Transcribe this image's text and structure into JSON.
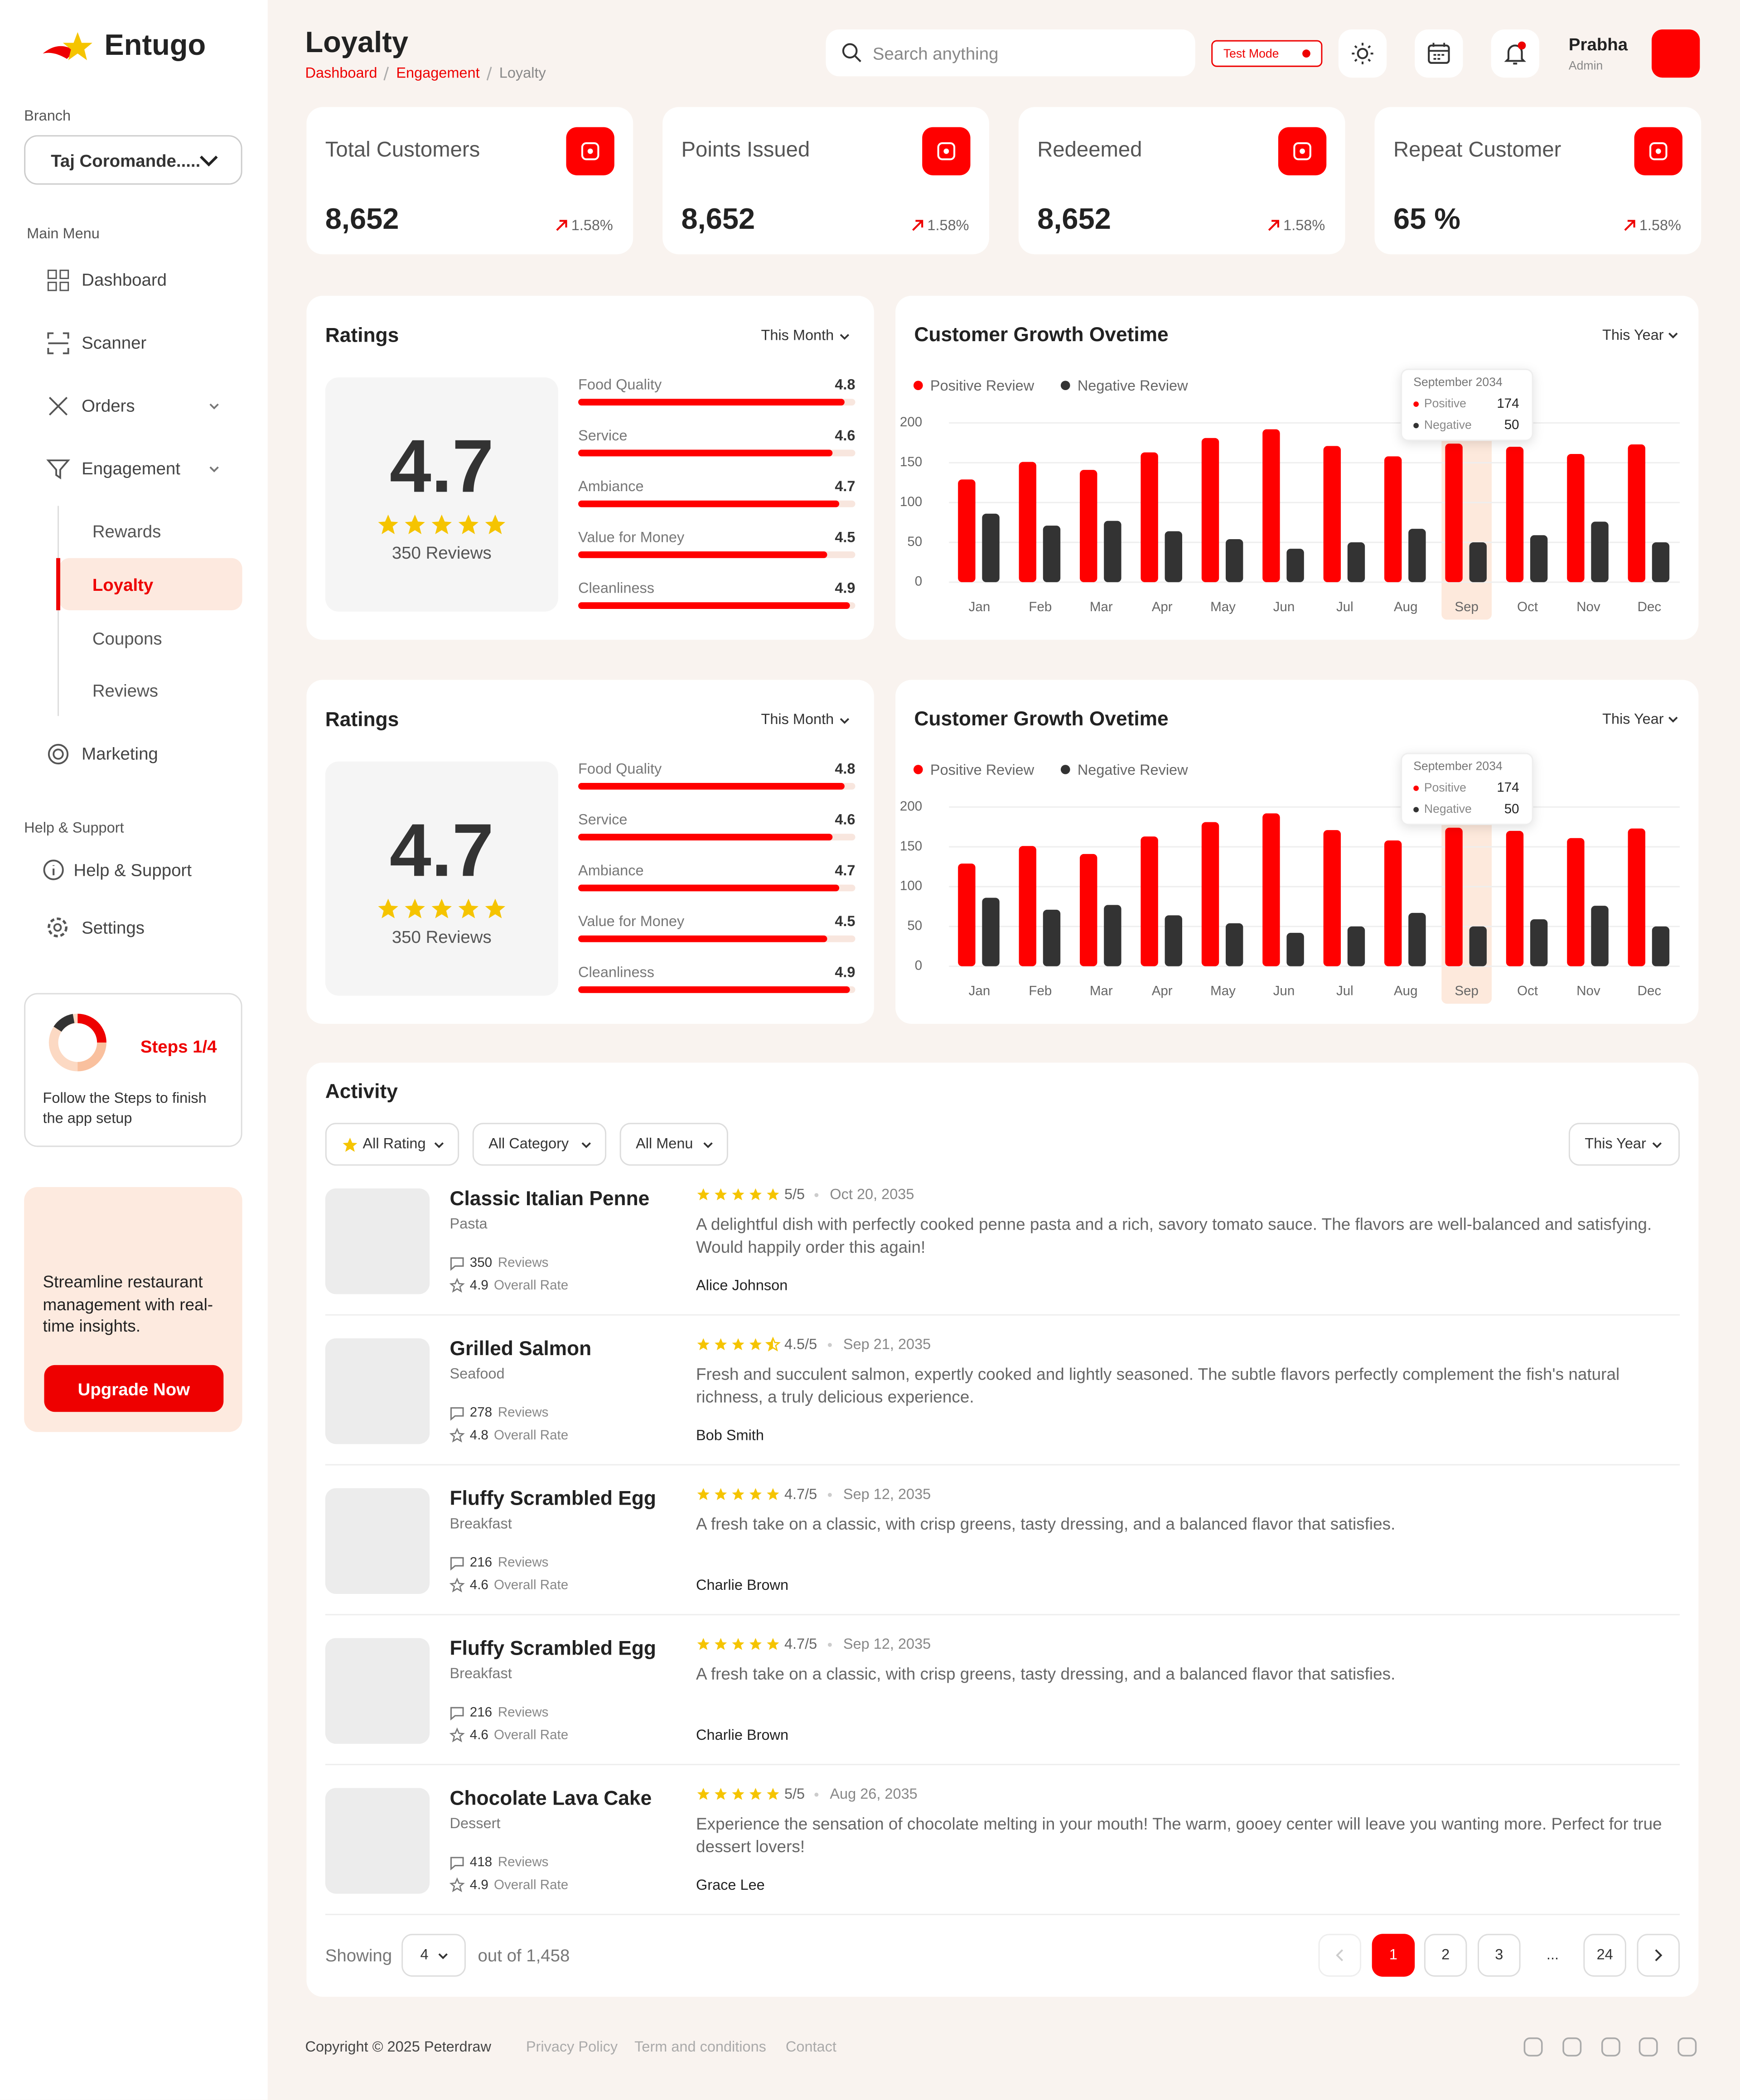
{
  "brand": "Entugo",
  "sidebar": {
    "branch_label": "Branch",
    "branch": "Taj Coromande.....",
    "main_menu_label": "Main Menu",
    "menu": [
      "Dashboard",
      "Scanner",
      "Orders",
      "Engagement"
    ],
    "submenu": [
      "Rewards",
      "Loyalty",
      "Coupons",
      "Reviews"
    ],
    "marketing": "Marketing",
    "help_label": "Help & Support",
    "help_menu": [
      "Help & Support",
      "Settings"
    ],
    "steps": {
      "title": "Steps 1/4",
      "text": "Follow the Steps to finish the  app setup"
    },
    "promo": {
      "text": "Streamline restaurant management with real-time insights.",
      "button": "Upgrade Now"
    }
  },
  "header": {
    "title": "Loyalty",
    "breadcrumb": [
      "Dashboard",
      "Engagement",
      "Loyalty"
    ],
    "search": "Search anything",
    "test_mode": "Test Mode",
    "user": "Prabha",
    "role": "Admin"
  },
  "stats": [
    {
      "label": "Total Customers",
      "value": "8,652",
      "change": "1.58%"
    },
    {
      "label": "Points Issued",
      "value": "8,652",
      "change": "1.58%"
    },
    {
      "label": "Redeemed",
      "value": "8,652",
      "change": "1.58%"
    },
    {
      "label": "Repeat Customer",
      "value": "65 %",
      "change": "1.58%"
    }
  ],
  "ratings": [
    {
      "title": "Ratings",
      "period": "This Month",
      "score": "4.7",
      "reviews": "350 Reviews",
      "xlim": [
        0,
        5
      ],
      "items": [
        {
          "name": "Food Quality",
          "value": 4.8
        },
        {
          "name": "Service",
          "value": 4.6
        },
        {
          "name": "Ambiance",
          "value": 4.7
        },
        {
          "name": "Value for Money",
          "value": 4.5
        },
        {
          "name": "Cleanliness",
          "value": 4.9
        }
      ]
    },
    {
      "title": "Ratings",
      "period": "This Month",
      "score": "4.7",
      "reviews": "350 Reviews",
      "xlim": [
        0,
        5
      ],
      "items": [
        {
          "name": "Food Quality",
          "value": 4.8
        },
        {
          "name": "Service",
          "value": 4.6
        },
        {
          "name": "Ambiance",
          "value": 4.7
        },
        {
          "name": "Value for Money",
          "value": 4.5
        },
        {
          "name": "Cleanliness",
          "value": 4.9
        }
      ]
    }
  ],
  "chart_data": [
    {
      "type": "bar",
      "title": "Customer Growth Ovetime",
      "period": "This Year",
      "categories": [
        "Jan",
        "Feb",
        "Mar",
        "Apr",
        "May",
        "Jun",
        "Jul",
        "Aug",
        "Sep",
        "Oct",
        "Nov",
        "Dec"
      ],
      "series": [
        {
          "name": "Positive Review",
          "color": "#ff0000",
          "values": [
            129,
            151,
            141,
            163,
            181,
            192,
            171,
            158,
            174,
            170,
            161,
            173
          ]
        },
        {
          "name": "Negative Review",
          "color": "#333333",
          "values": [
            86,
            71,
            77,
            64,
            54,
            42,
            50,
            67,
            50,
            59,
            76,
            50
          ]
        }
      ],
      "ylim": [
        0,
        200
      ],
      "yticks": [
        0,
        50,
        100,
        150,
        200
      ],
      "grid": true,
      "tooltip": {
        "title": "September 2034",
        "items": [
          {
            "name": "Positive",
            "value": 174
          },
          {
            "name": "Negative",
            "value": 50
          }
        ]
      }
    },
    {
      "type": "bar",
      "title": "Customer Growth Ovetime",
      "period": "This Year",
      "categories": [
        "Jan",
        "Feb",
        "Mar",
        "Apr",
        "May",
        "Jun",
        "Jul",
        "Aug",
        "Sep",
        "Oct",
        "Nov",
        "Dec"
      ],
      "series": [
        {
          "name": "Positive Review",
          "color": "#ff0000",
          "values": [
            129,
            151,
            141,
            163,
            181,
            192,
            171,
            158,
            174,
            170,
            161,
            173
          ]
        },
        {
          "name": "Negative Review",
          "color": "#333333",
          "values": [
            86,
            71,
            77,
            64,
            54,
            42,
            50,
            67,
            50,
            59,
            76,
            50
          ]
        }
      ],
      "ylim": [
        0,
        200
      ],
      "yticks": [
        0,
        50,
        100,
        150,
        200
      ],
      "grid": true,
      "tooltip": {
        "title": "September 2034",
        "items": [
          {
            "name": "Positive",
            "value": 174
          },
          {
            "name": "Negative",
            "value": 50
          }
        ]
      }
    }
  ],
  "activity": {
    "title": "Activity",
    "filters": [
      "All Rating",
      "All Category",
      "All Menu"
    ],
    "period": "This Year",
    "items": [
      {
        "name": "Classic Italian Penne",
        "category": "Pasta",
        "reviews": "350",
        "reviews_label": "Reviews",
        "rate": "4.9",
        "rate_label": "Overall Rate",
        "rating": "5/5",
        "date": "Oct 20, 2035",
        "text": "A delightful dish with perfectly cooked penne pasta and a rich, savory tomato sauce. The flavors are well-balanced and satisfying. Would happily order this again!",
        "author": "Alice Johnson"
      },
      {
        "name": "Grilled Salmon",
        "category": "Seafood",
        "reviews": "278",
        "reviews_label": "Reviews",
        "rate": "4.8",
        "rate_label": "Overall Rate",
        "rating": "4.5/5",
        "date": "Sep 21, 2035",
        "text": "Fresh and succulent salmon, expertly cooked and lightly seasoned. The subtle flavors perfectly complement the fish's natural richness, a truly delicious experience.",
        "author": "Bob Smith"
      },
      {
        "name": "Fluffy Scrambled Egg",
        "category": "Breakfast",
        "reviews": "216",
        "reviews_label": "Reviews",
        "rate": "4.6",
        "rate_label": "Overall Rate",
        "rating": "4.7/5",
        "date": "Sep 12, 2035",
        "text": "A fresh take on a classic, with crisp greens, tasty dressing, and a balanced flavor that satisfies.",
        "author": "Charlie Brown"
      },
      {
        "name": "Fluffy Scrambled Egg",
        "category": "Breakfast",
        "reviews": "216",
        "reviews_label": "Reviews",
        "rate": "4.6",
        "rate_label": "Overall Rate",
        "rating": "4.7/5",
        "date": "Sep 12, 2035",
        "text": "A fresh take on a classic, with crisp greens, tasty dressing, and a balanced flavor that satisfies.",
        "author": "Charlie Brown"
      },
      {
        "name": "Chocolate Lava Cake",
        "category": "Dessert",
        "reviews": "418",
        "reviews_label": "Reviews",
        "rate": "4.9",
        "rate_label": "Overall Rate",
        "rating": "5/5",
        "date": "Aug 26, 2035",
        "text": "Experience the sensation of chocolate melting in your mouth! The warm, gooey center will leave you wanting more. Perfect for true dessert lovers!",
        "author": "Grace Lee"
      }
    ],
    "pagination": {
      "showing": "Showing",
      "per_page": "4",
      "total": "out of 1,458",
      "pages": [
        "1",
        "2",
        "3",
        "...",
        "24"
      ]
    }
  },
  "footer": {
    "copyright": "Copyright © 2025 Peterdraw",
    "links": [
      "Privacy Policy",
      "Term and conditions",
      "Contact"
    ]
  }
}
